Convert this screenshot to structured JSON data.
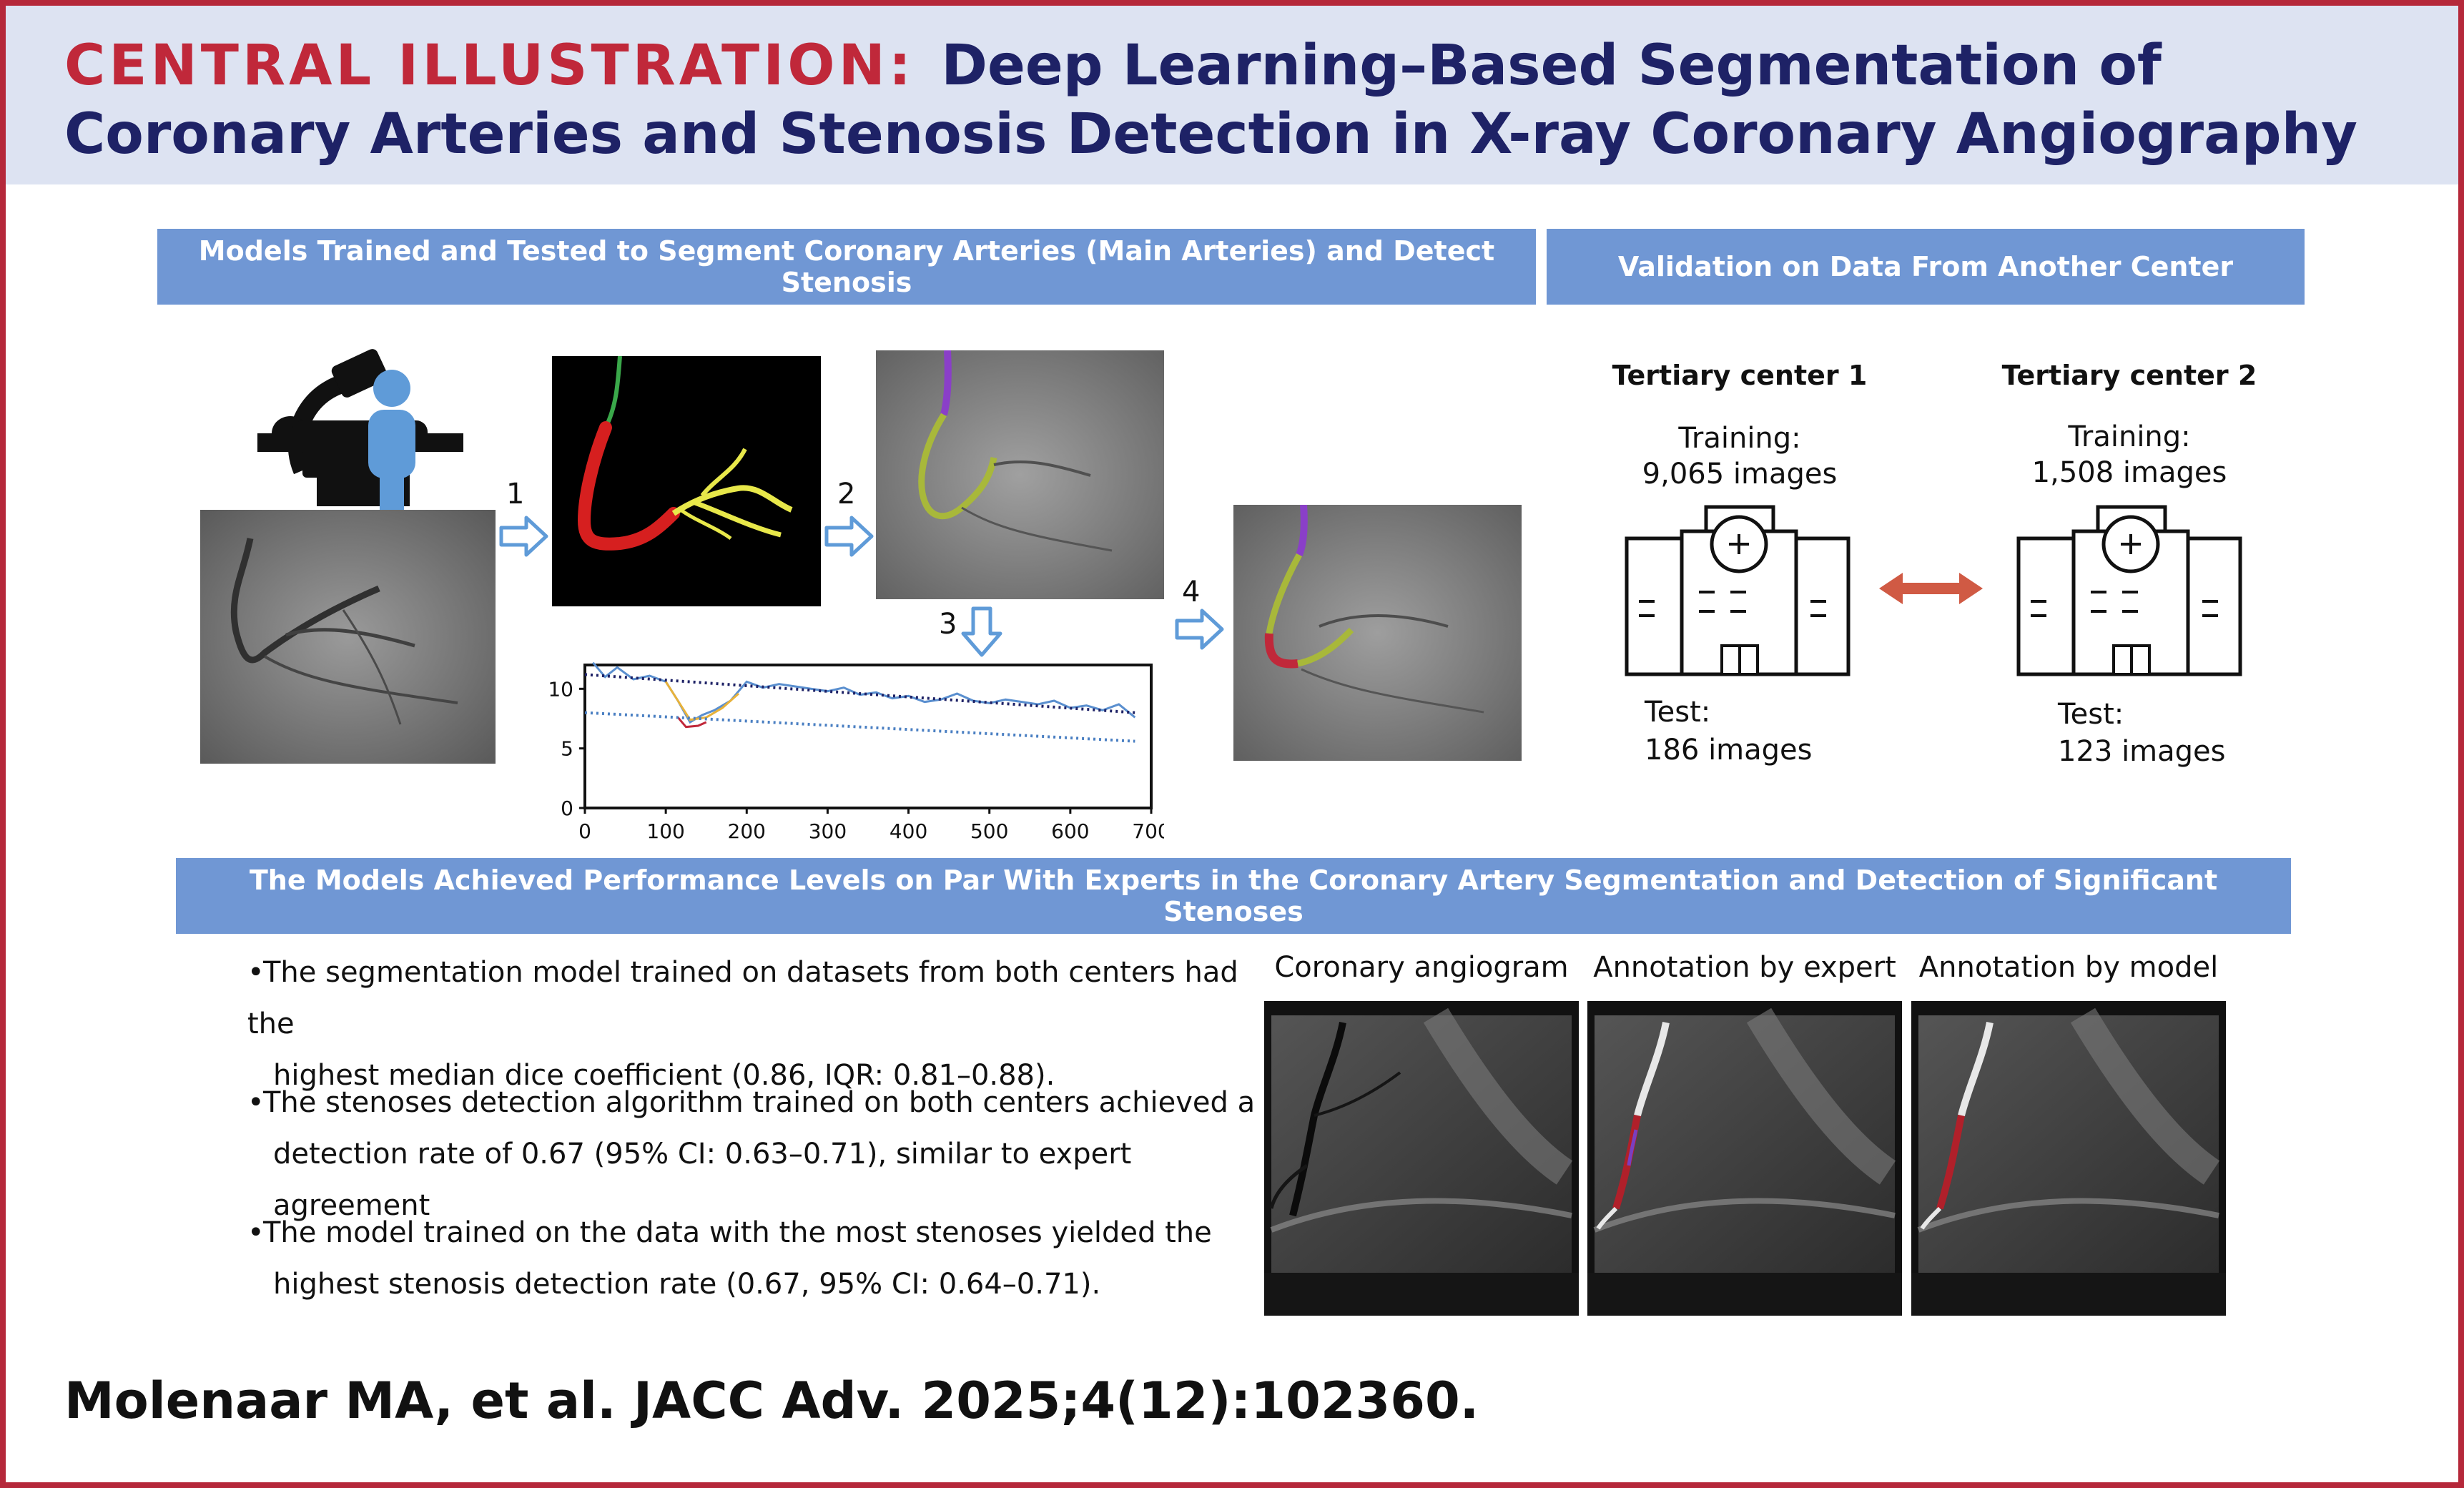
{
  "header": {
    "lead": "CENTRAL ILLUSTRATION:",
    "title": "Deep Learning–Based Segmentation of Coronary Arteries and Stenosis Detection in X-ray Coronary Angiography"
  },
  "section_training": {
    "title": "Models Trained and Tested to Segment Coronary Arteries (Main Arteries) and Detect Stenosis",
    "steps": [
      "1",
      "2",
      "3",
      "4"
    ]
  },
  "section_validation": {
    "title": "Validation on Data From Another Center",
    "centers": [
      {
        "name": "Tertiary center 1",
        "training_label": "Training:",
        "training_count": "9,065 images",
        "test_label": "Test:",
        "test_count": "186 images"
      },
      {
        "name": "Tertiary center 2",
        "training_label": "Training:",
        "training_count": "1,508 images",
        "test_label": "Test:",
        "test_count": "123 images"
      }
    ]
  },
  "section_results": {
    "title": "The Models Achieved Performance Levels on Par With Experts in the Coronary Artery Segmentation and Detection of Significant Stenoses",
    "bullets": [
      {
        "line1": "The segmentation model trained on datasets from both centers had the",
        "line2": "highest median dice coefficient (0.86, IQR: 0.81–0.88)."
      },
      {
        "line1": "The stenoses detection algorithm trained on both centers achieved a",
        "line2": "detection rate of 0.67 (95% CI: 0.63–0.71), similar to expert agreement"
      },
      {
        "line1": "The model trained on the data with the most stenoses yielded the",
        "line2": "highest stenosis detection rate (0.67, 95% CI: 0.64–0.71)."
      }
    ],
    "image_captions": [
      "Coronary angiogram",
      "Annotation by expert",
      "Annotation by model"
    ]
  },
  "chart_data": {
    "type": "line",
    "title": "",
    "xlabel": "",
    "ylabel": "",
    "xlim": [
      0,
      700
    ],
    "ylim": [
      0,
      12
    ],
    "x_ticks": [
      "0",
      "100",
      "200",
      "300",
      "400",
      "500",
      "600",
      "700"
    ],
    "y_ticks": [
      "0",
      "5",
      "10"
    ],
    "series": [
      {
        "color": "#5a8fcf",
        "style": "solid",
        "x": [
          10,
          25,
          40,
          60,
          80,
          100,
          115,
          130,
          145,
          160,
          180,
          200,
          220,
          240,
          260,
          280,
          300,
          320,
          340,
          360,
          380,
          400,
          420,
          440,
          460,
          480,
          500,
          520,
          540,
          560,
          580,
          600,
          620,
          640,
          660,
          680
        ],
        "y": [
          12.2,
          11.0,
          11.8,
          10.8,
          11.1,
          10.6,
          9.0,
          7.2,
          7.8,
          8.2,
          9.0,
          10.6,
          10.1,
          10.4,
          10.2,
          10.0,
          9.8,
          10.1,
          9.5,
          9.7,
          9.2,
          9.4,
          8.9,
          9.1,
          9.6,
          9.0,
          8.8,
          9.1,
          8.9,
          8.7,
          9.0,
          8.4,
          8.6,
          8.2,
          8.7,
          7.6
        ]
      },
      {
        "color": "#e8b23a",
        "style": "solid",
        "x": [
          100,
          115,
          130,
          150,
          170,
          190
        ],
        "y": [
          10.6,
          9.0,
          7.4,
          7.6,
          8.4,
          9.6
        ]
      },
      {
        "color": "#c0283a",
        "style": "solid",
        "x": [
          115,
          125,
          140,
          150
        ],
        "y": [
          7.6,
          6.8,
          6.9,
          7.2
        ]
      },
      {
        "color": "#1e2266",
        "style": "dotted",
        "x": [
          0,
          680
        ],
        "y": [
          11.2,
          8.0
        ]
      },
      {
        "color": "#4a7fc2",
        "style": "dotted",
        "x": [
          0,
          680
        ],
        "y": [
          8.0,
          5.6
        ]
      }
    ]
  },
  "citation": "Molenaar MA, et al. JACC Adv. 2025;4(12):102360."
}
